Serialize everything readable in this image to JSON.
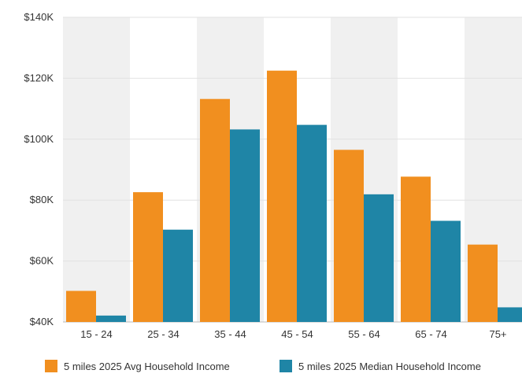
{
  "chart_data": {
    "type": "bar",
    "categories": [
      "15 - 24",
      "25 - 34",
      "35 - 44",
      "45 - 54",
      "55 - 64",
      "65 - 74",
      "75+"
    ],
    "series": [
      {
        "name": "5 miles 2025 Avg Household Income",
        "color": "#f18f1f",
        "values": [
          50200,
          82600,
          113200,
          122500,
          96500,
          87700,
          65400
        ]
      },
      {
        "name": "5 miles 2025 Median Household Income",
        "color": "#1f85a6",
        "values": [
          42100,
          70300,
          103200,
          104700,
          81900,
          73200,
          44800
        ]
      }
    ],
    "y_ticks": [
      "$40K",
      "$60K",
      "$80K",
      "$100K",
      "$120K",
      "$140K"
    ],
    "ylim": [
      40000,
      140000
    ],
    "grid": true,
    "band_color": "#f0f0f0",
    "legend_position": "bottom"
  }
}
